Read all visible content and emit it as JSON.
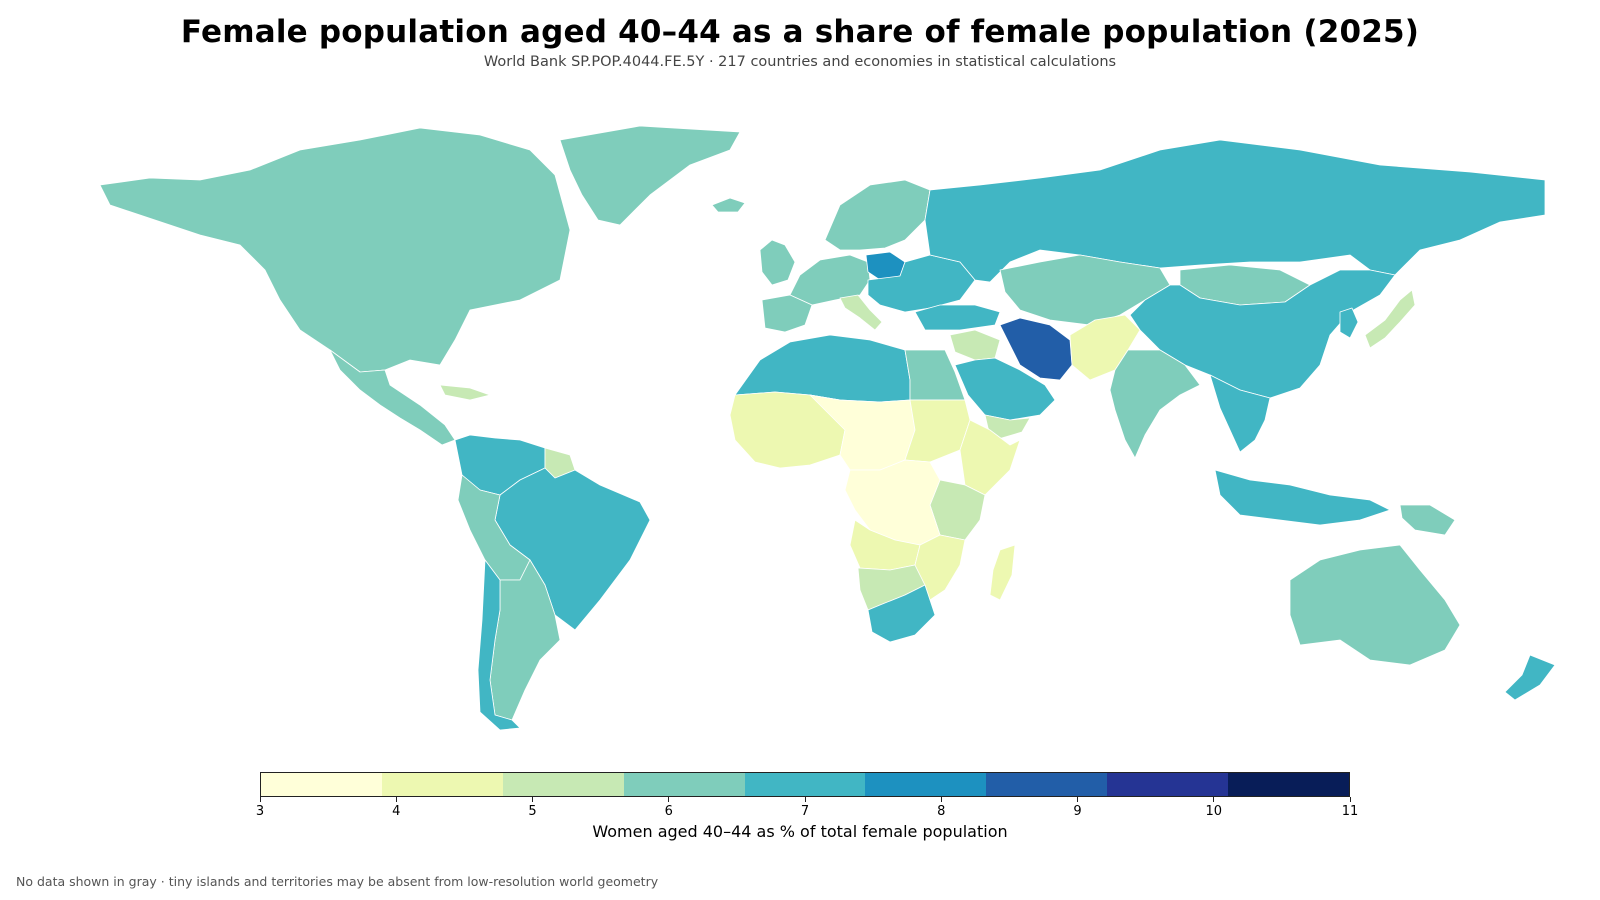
{
  "header": {
    "title": "Female population aged 40–44 as a share of female population (2025)",
    "subtitle": "World Bank SP.POP.4044.FE.5Y · 217 countries and economies in statistical calculations"
  },
  "legend": {
    "title": "Women aged 40–44 as % of total female population",
    "ticks": [
      "3",
      "4",
      "5",
      "6",
      "7",
      "8",
      "9",
      "10",
      "11"
    ],
    "colors": [
      "#ffffd9",
      "#edf8b1",
      "#c7e9b4",
      "#7fcdbb",
      "#41b6c4",
      "#1d91c0",
      "#225ea8",
      "#253494",
      "#081d58"
    ]
  },
  "footnote": "No data shown in gray · tiny islands and territories may be absent from low-resolution world geometry",
  "regions": [
    {
      "name": "Greenland",
      "value": 6.5
    },
    {
      "name": "North America",
      "value": 6.5
    },
    {
      "name": "Central America",
      "value": 6.5
    },
    {
      "name": "Caribbean",
      "value": 5.5
    },
    {
      "name": "Colombia and Venezuela",
      "value": 7.2
    },
    {
      "name": "Guianas",
      "value": 5.5
    },
    {
      "name": "Brazil",
      "value": 7.3
    },
    {
      "name": "Peru and Bolivia",
      "value": 6.4
    },
    {
      "name": "Argentina",
      "value": 6.5
    },
    {
      "name": "Chile",
      "value": 7.2
    },
    {
      "name": "Iceland",
      "value": 6.5
    },
    {
      "name": "Ireland and UK",
      "value": 6.8
    },
    {
      "name": "Scandinavia",
      "value": 6.5
    },
    {
      "name": "Western Europe",
      "value": 6.5
    },
    {
      "name": "Iberia",
      "value": 6.5
    },
    {
      "name": "Italy",
      "value": 5.8
    },
    {
      "name": "Poland",
      "value": 8.4
    },
    {
      "name": "Eastern Europe",
      "value": 7.5
    },
    {
      "name": "Russia",
      "value": 7.3
    },
    {
      "name": "Turkey",
      "value": 7.3
    },
    {
      "name": "Central Asia",
      "value": 6.5
    },
    {
      "name": "Mongolia",
      "value": 6.5
    },
    {
      "name": "China",
      "value": 7.5
    },
    {
      "name": "Korea",
      "value": 7.5
    },
    {
      "name": "Japan",
      "value": 5.5
    },
    {
      "name": "North Africa",
      "value": 7.3
    },
    {
      "name": "Egypt",
      "value": 6.5
    },
    {
      "name": "Levant",
      "value": 5.5
    },
    {
      "name": "Arabian Peninsula",
      "value": 7.3
    },
    {
      "name": "Yemen",
      "value": 5.5
    },
    {
      "name": "Iran",
      "value": 9.5
    },
    {
      "name": "Afghanistan and Pakistan",
      "value": 4.5
    },
    {
      "name": "India",
      "value": 6.5
    },
    {
      "name": "Southeast Asia",
      "value": 7.3
    },
    {
      "name": "Indonesia",
      "value": 7.3
    },
    {
      "name": "Papua New Guinea",
      "value": 6.5
    },
    {
      "name": "Australia",
      "value": 6.5
    },
    {
      "name": "New Zealand",
      "value": 7.3
    },
    {
      "name": "West Africa",
      "value": 4.5
    },
    {
      "name": "Sahel",
      "value": 3.5
    },
    {
      "name": "Sudan",
      "value": 4.5
    },
    {
      "name": "Horn of Africa",
      "value": 4.5
    },
    {
      "name": "Kenya and Tanzania",
      "value": 5.5
    },
    {
      "name": "Central Africa",
      "value": 3.5
    },
    {
      "name": "Angola and Zambia",
      "value": 4.5
    },
    {
      "name": "Namibia and Botswana",
      "value": 5.5
    },
    {
      "name": "Mozambique",
      "value": 4.5
    },
    {
      "name": "Madagascar",
      "value": 4.5
    },
    {
      "name": "South Africa",
      "value": 7.3
    }
  ]
}
